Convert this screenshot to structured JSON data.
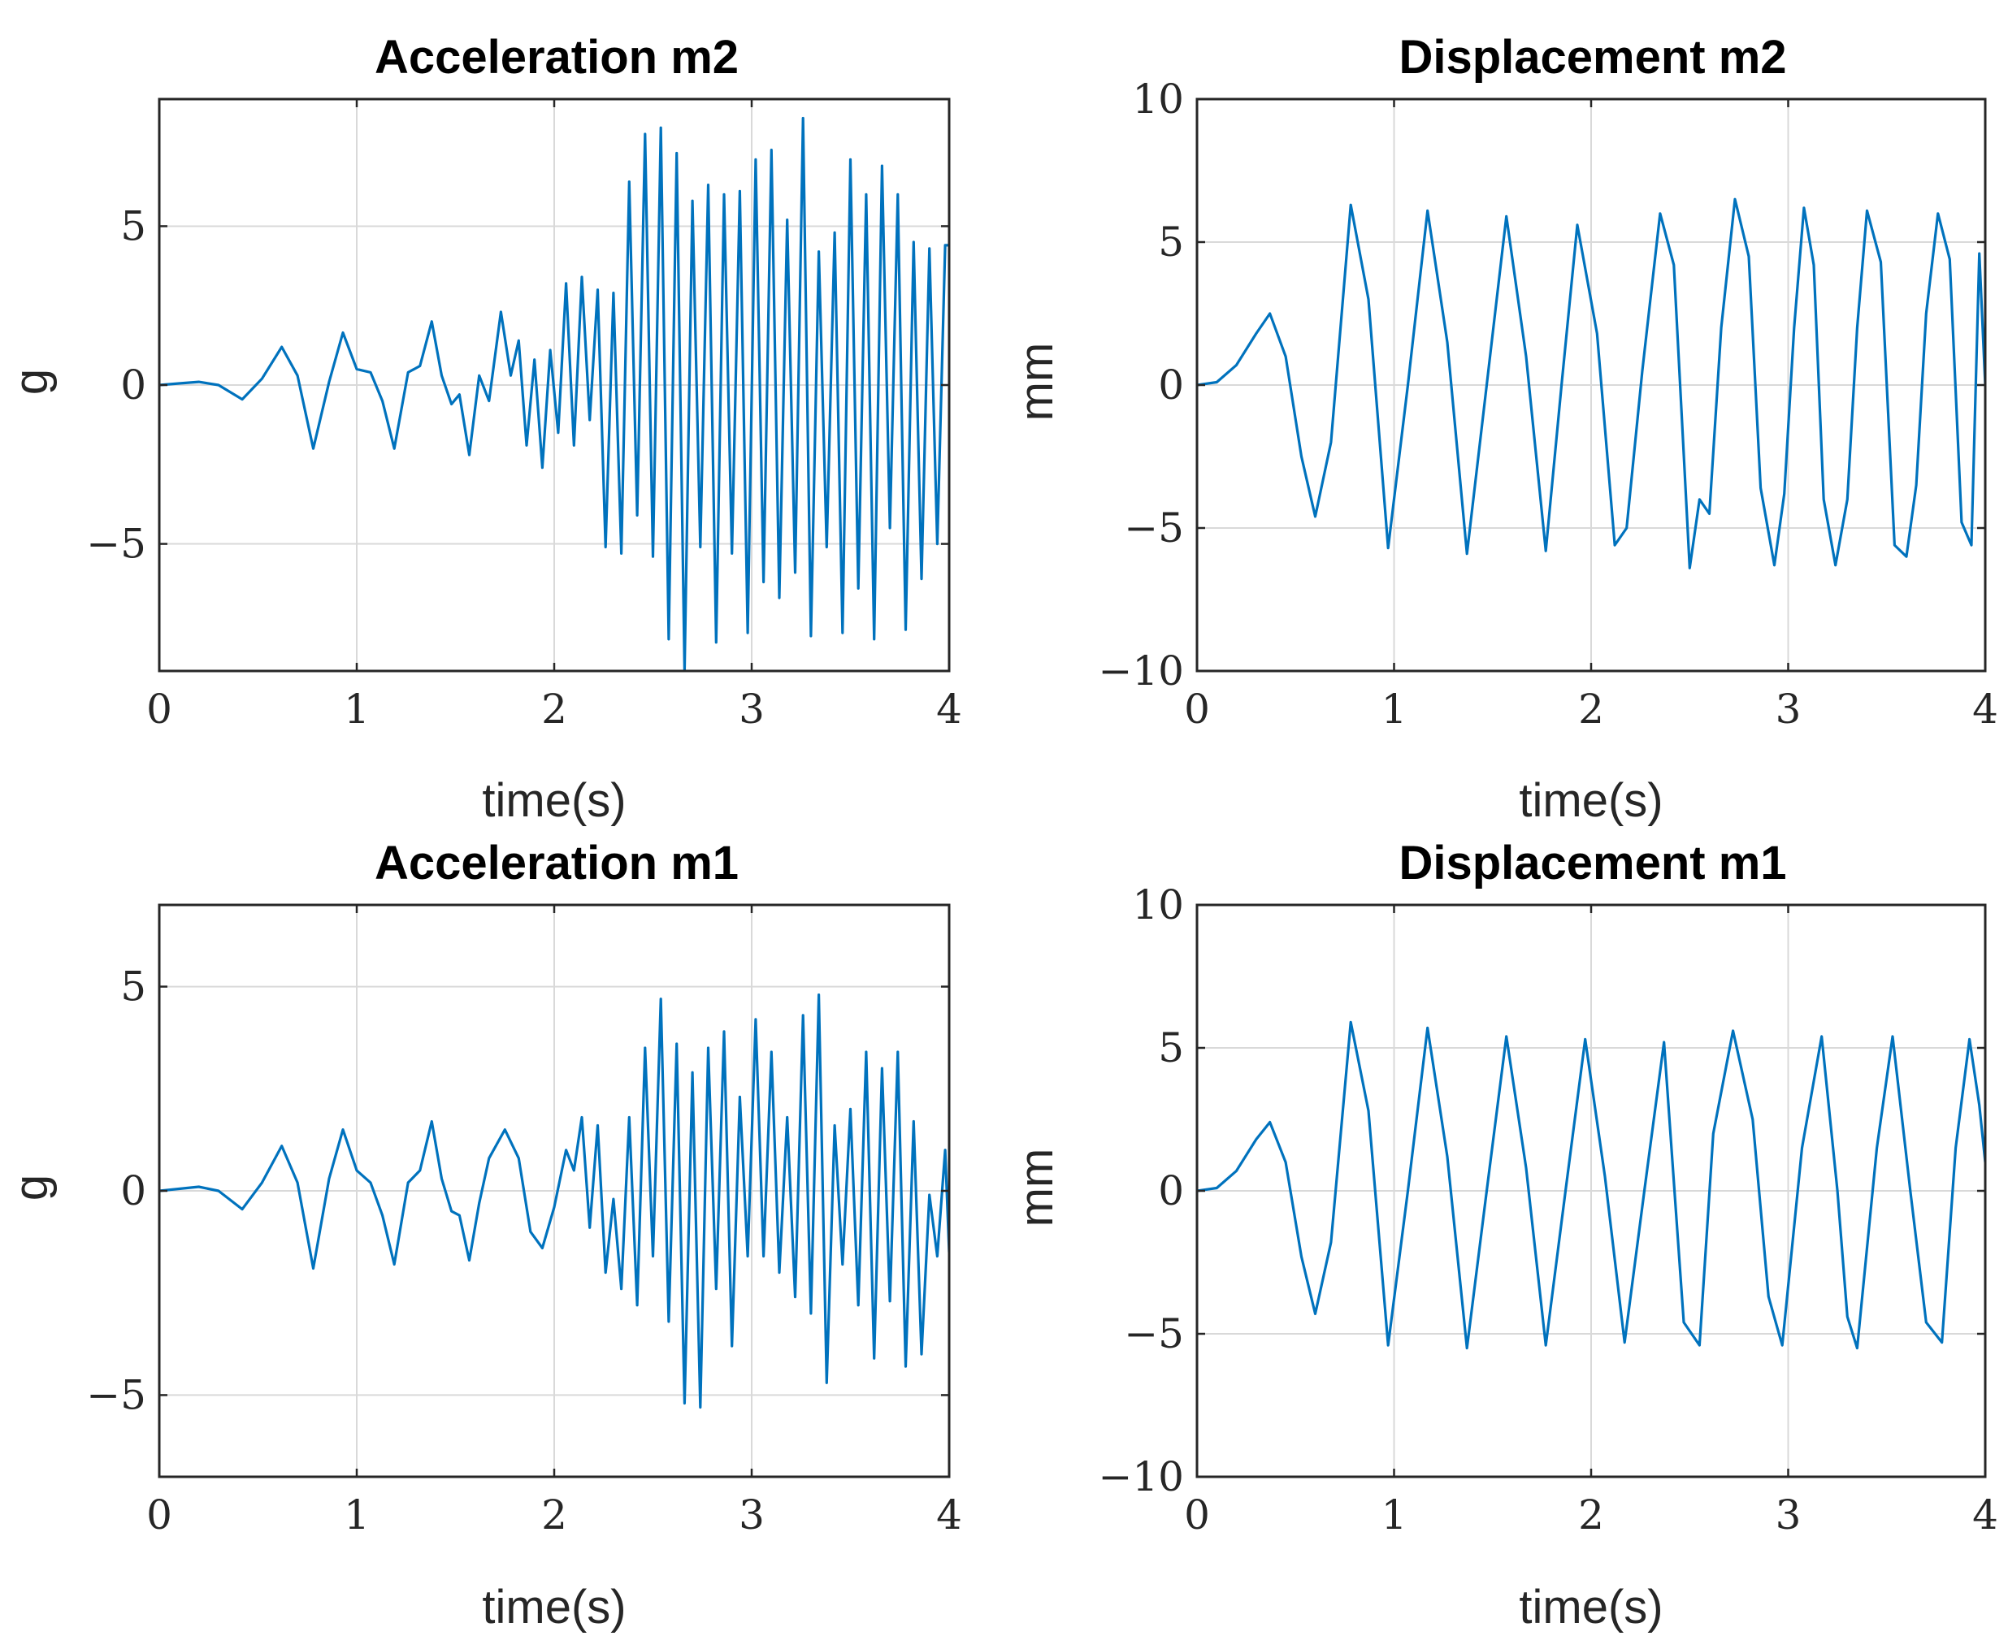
{
  "figure": {
    "line_color": "#0072bd",
    "grid_color": "#d9d9d9"
  },
  "chart_data": [
    {
      "id": "acc-m2",
      "type": "line",
      "title": "Acceleration m2",
      "xlabel": "time(s)",
      "ylabel": "g",
      "xlim": [
        0,
        4
      ],
      "ylim": [
        -9,
        9
      ],
      "xticks": [
        0,
        1,
        2,
        3,
        4
      ],
      "yticks": [
        -5,
        0,
        5
      ],
      "grid": true,
      "series": [
        {
          "name": "acceleration m2",
          "x": [
            0,
            0.1,
            0.2,
            0.3,
            0.42,
            0.52,
            0.62,
            0.7,
            0.78,
            0.86,
            0.93,
            1.0,
            1.07,
            1.13,
            1.19,
            1.26,
            1.32,
            1.38,
            1.43,
            1.48,
            1.52,
            1.57,
            1.62,
            1.67,
            1.73,
            1.78,
            1.82,
            1.86,
            1.9,
            1.94,
            1.98,
            2.02,
            2.06,
            2.1,
            2.14,
            2.18,
            2.22,
            2.26,
            2.3,
            2.34,
            2.38,
            2.42,
            2.46,
            2.5,
            2.54,
            2.58,
            2.62,
            2.66,
            2.7,
            2.74,
            2.78,
            2.82,
            2.86,
            2.9,
            2.94,
            2.98,
            3.02,
            3.06,
            3.1,
            3.14,
            3.18,
            3.22,
            3.26,
            3.3,
            3.34,
            3.38,
            3.42,
            3.46,
            3.5,
            3.54,
            3.58,
            3.62,
            3.66,
            3.7,
            3.74,
            3.78,
            3.82,
            3.86,
            3.9,
            3.94,
            3.98,
            4.0
          ],
          "y": [
            0,
            0.05,
            0.1,
            0,
            -0.45,
            0.2,
            1.2,
            0.3,
            -2.0,
            0.1,
            1.65,
            0.5,
            0.4,
            -0.5,
            -2.0,
            0.4,
            0.6,
            2.0,
            0.3,
            -0.6,
            -0.3,
            -2.2,
            0.3,
            -0.5,
            2.3,
            0.3,
            1.4,
            -1.9,
            0.8,
            -2.6,
            1.1,
            -1.5,
            3.2,
            -1.9,
            3.4,
            -1.1,
            3.0,
            -5.1,
            2.9,
            -5.3,
            6.4,
            -4.1,
            7.9,
            -5.4,
            8.1,
            -8.0,
            7.3,
            -9.0,
            5.8,
            -5.1,
            6.3,
            -8.1,
            6.0,
            -5.3,
            6.1,
            -7.8,
            7.1,
            -6.2,
            7.4,
            -6.7,
            5.2,
            -5.9,
            8.4,
            -7.9,
            4.2,
            -5.1,
            4.8,
            -7.8,
            7.1,
            -6.4,
            6.0,
            -8.0,
            6.9,
            -4.5,
            6.0,
            -7.7,
            4.5,
            -6.1,
            4.3,
            -5.0,
            4.4,
            4.4
          ]
        }
      ]
    },
    {
      "id": "disp-m2",
      "type": "line",
      "title": "Displacement m2",
      "xlabel": "time(s)",
      "ylabel": "mm",
      "xlim": [
        0,
        4
      ],
      "ylim": [
        -10,
        10
      ],
      "xticks": [
        0,
        1,
        2,
        3,
        4
      ],
      "yticks": [
        -10,
        -5,
        0,
        5,
        10
      ],
      "grid": true,
      "series": [
        {
          "name": "displacement m2",
          "x": [
            0,
            0.1,
            0.2,
            0.3,
            0.37,
            0.45,
            0.53,
            0.6,
            0.68,
            0.78,
            0.87,
            0.97,
            1.07,
            1.17,
            1.27,
            1.37,
            1.47,
            1.57,
            1.67,
            1.77,
            1.85,
            1.93,
            2.03,
            2.12,
            2.18,
            2.26,
            2.35,
            2.42,
            2.5,
            2.55,
            2.6,
            2.66,
            2.73,
            2.8,
            2.86,
            2.93,
            2.98,
            3.03,
            3.08,
            3.13,
            3.18,
            3.24,
            3.3,
            3.35,
            3.4,
            3.47,
            3.54,
            3.6,
            3.65,
            3.7,
            3.76,
            3.82,
            3.88,
            3.93,
            3.97,
            4.0
          ],
          "y": [
            0,
            0.1,
            0.7,
            1.8,
            2.5,
            1.0,
            -2.5,
            -4.6,
            -2.0,
            6.3,
            3.0,
            -5.7,
            0.0,
            6.1,
            1.5,
            -5.9,
            0.0,
            5.9,
            1.0,
            -5.8,
            0.0,
            5.6,
            1.8,
            -5.6,
            -5.0,
            0.5,
            6.0,
            4.2,
            -6.4,
            -4.0,
            -4.5,
            2.0,
            6.5,
            4.5,
            -3.6,
            -6.3,
            -3.8,
            2.0,
            6.2,
            4.2,
            -4.0,
            -6.3,
            -4.0,
            2.0,
            6.1,
            4.3,
            -5.6,
            -6.0,
            -3.5,
            2.5,
            6.0,
            4.4,
            -4.8,
            -5.6,
            4.6,
            0.0
          ]
        }
      ]
    },
    {
      "id": "acc-m1",
      "type": "line",
      "title": "Acceleration m1",
      "xlabel": "time(s)",
      "ylabel": "g",
      "xlim": [
        0,
        4
      ],
      "ylim": [
        -7,
        7
      ],
      "xticks": [
        0,
        1,
        2,
        3,
        4
      ],
      "yticks": [
        -5,
        0,
        5
      ],
      "grid": true,
      "series": [
        {
          "name": "acceleration m1",
          "x": [
            0,
            0.1,
            0.2,
            0.3,
            0.42,
            0.52,
            0.62,
            0.7,
            0.78,
            0.86,
            0.93,
            1.0,
            1.07,
            1.13,
            1.19,
            1.26,
            1.32,
            1.38,
            1.43,
            1.48,
            1.52,
            1.57,
            1.62,
            1.67,
            1.75,
            1.82,
            1.88,
            1.94,
            2.0,
            2.06,
            2.1,
            2.14,
            2.18,
            2.22,
            2.26,
            2.3,
            2.34,
            2.38,
            2.42,
            2.46,
            2.5,
            2.54,
            2.58,
            2.62,
            2.66,
            2.7,
            2.74,
            2.78,
            2.82,
            2.86,
            2.9,
            2.94,
            2.98,
            3.02,
            3.06,
            3.1,
            3.14,
            3.18,
            3.22,
            3.26,
            3.3,
            3.34,
            3.38,
            3.42,
            3.46,
            3.5,
            3.54,
            3.58,
            3.62,
            3.66,
            3.7,
            3.74,
            3.78,
            3.82,
            3.86,
            3.9,
            3.94,
            3.98,
            4.0
          ],
          "y": [
            0,
            0.05,
            0.1,
            0,
            -0.45,
            0.2,
            1.1,
            0.2,
            -1.9,
            0.3,
            1.5,
            0.5,
            0.2,
            -0.6,
            -1.8,
            0.2,
            0.5,
            1.7,
            0.3,
            -0.5,
            -0.6,
            -1.7,
            -0.3,
            0.8,
            1.5,
            0.8,
            -1.0,
            -1.4,
            -0.4,
            1.0,
            0.5,
            1.8,
            -0.9,
            1.6,
            -2.0,
            -0.2,
            -2.4,
            1.8,
            -2.8,
            3.5,
            -1.6,
            4.7,
            -3.2,
            3.6,
            -5.2,
            2.9,
            -5.3,
            3.5,
            -2.4,
            3.9,
            -3.8,
            2.3,
            -1.6,
            4.2,
            -1.6,
            3.4,
            -2.0,
            1.8,
            -2.6,
            4.3,
            -3.0,
            4.8,
            -4.7,
            1.6,
            -1.8,
            2.0,
            -2.8,
            3.4,
            -4.1,
            3.0,
            -2.7,
            3.4,
            -4.3,
            1.7,
            -4.0,
            -0.1,
            -1.6,
            1.0,
            -1.5
          ]
        }
      ]
    },
    {
      "id": "disp-m1",
      "type": "line",
      "title": "Displacement m1",
      "xlabel": "time(s)",
      "ylabel": "mm",
      "xlim": [
        0,
        4
      ],
      "ylim": [
        -10,
        10
      ],
      "xticks": [
        0,
        1,
        2,
        3,
        4
      ],
      "yticks": [
        -10,
        -5,
        0,
        5,
        10
      ],
      "grid": true,
      "series": [
        {
          "name": "displacement m1",
          "x": [
            0,
            0.1,
            0.2,
            0.3,
            0.37,
            0.45,
            0.53,
            0.6,
            0.68,
            0.78,
            0.87,
            0.97,
            1.07,
            1.17,
            1.27,
            1.37,
            1.47,
            1.57,
            1.67,
            1.77,
            1.87,
            1.97,
            2.07,
            2.17,
            2.27,
            2.37,
            2.47,
            2.55,
            2.62,
            2.72,
            2.82,
            2.9,
            2.97,
            3.07,
            3.17,
            3.25,
            3.3,
            3.35,
            3.45,
            3.53,
            3.62,
            3.7,
            3.78,
            3.85,
            3.92,
            3.97,
            4.0
          ],
          "y": [
            0,
            0.1,
            0.7,
            1.8,
            2.4,
            1.0,
            -2.3,
            -4.3,
            -1.8,
            5.9,
            2.8,
            -5.4,
            0.0,
            5.7,
            1.2,
            -5.5,
            0.0,
            5.4,
            0.8,
            -5.4,
            0.0,
            5.3,
            0.5,
            -5.3,
            0.0,
            5.2,
            -4.6,
            -5.4,
            2.0,
            5.6,
            2.5,
            -3.7,
            -5.4,
            1.5,
            5.4,
            0.0,
            -4.4,
            -5.5,
            1.5,
            5.4,
            0.0,
            -4.6,
            -5.3,
            1.5,
            5.3,
            3.0,
            1.0
          ]
        }
      ]
    }
  ]
}
